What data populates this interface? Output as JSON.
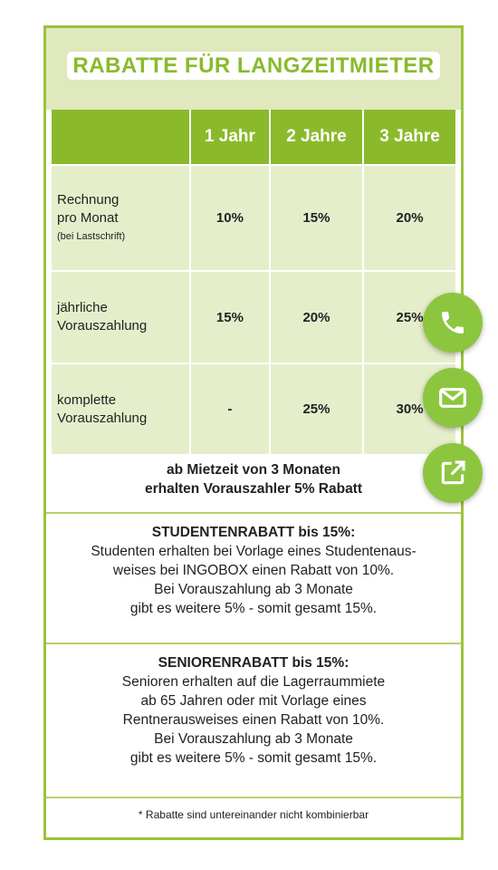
{
  "header": {
    "title": "RABATTE FÜR LANGZEITMIETER"
  },
  "table": {
    "headers": [
      "1 Jahr",
      "2 Jahre",
      "3 Jahre"
    ],
    "rows": [
      {
        "label": [
          "Rechnung",
          "pro Monat"
        ],
        "note": "(bei Lastschrift)",
        "values": [
          "10%",
          "15%",
          "20%"
        ]
      },
      {
        "label": [
          "jährliche",
          "Vorauszahlung"
        ],
        "values": [
          "15%",
          "20%",
          "25%"
        ]
      },
      {
        "label": [
          "komplette",
          "Vorauszahlung"
        ],
        "values": [
          "-",
          "25%",
          "30%"
        ]
      }
    ]
  },
  "notice": [
    "ab Mietzeit von 3 Monaten",
    "erhalten Vorauszahler 5% Rabatt"
  ],
  "student": {
    "heading": "STUDENTENRABATT bis 15%:",
    "lines": [
      "Studenten erhalten bei Vorlage eines Studentenaus-",
      "weises bei INGOBOX einen Rabatt von 10%.",
      "Bei Vorauszahlung ab 3 Monate",
      "gibt es weitere 5% - somit gesamt 15%."
    ]
  },
  "senior": {
    "heading": "SENIORENRABATT bis 15%:",
    "lines": [
      "Senioren erhalten auf die Lagerraummiete",
      "ab 65 Jahren oder mit Vorlage eines",
      "Rentnerausweises einen Rabatt von 10%.",
      "Bei Vorauszahlung ab 3 Monate",
      "gibt es weitere 5% - somit gesamt 15%."
    ]
  },
  "footnote": "* Rabatte sind untereinander nicht kombinierbar"
}
